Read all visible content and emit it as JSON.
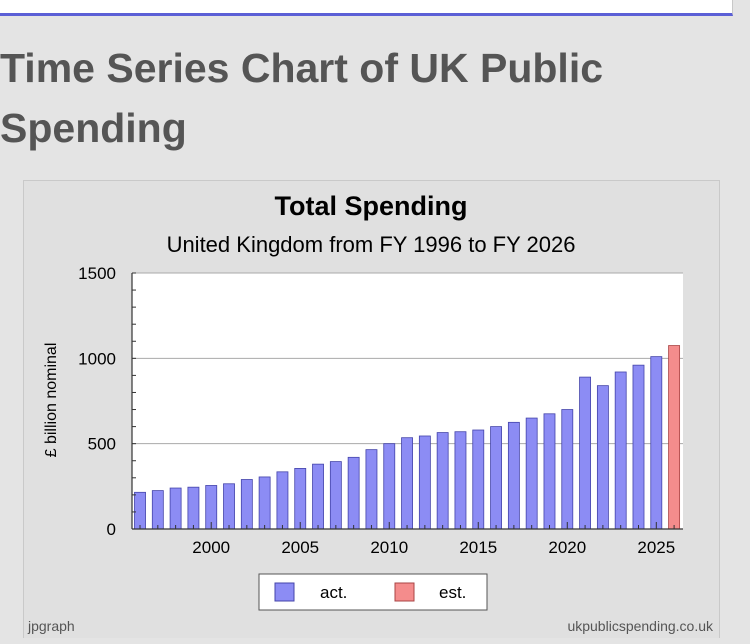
{
  "page": {
    "title": "Time Series Chart of UK Public Spending"
  },
  "chart_data": {
    "type": "bar",
    "title": "Total Spending",
    "subtitle": "United Kingdom from FY 1996 to FY 2026",
    "ylabel": "£ billion nominal",
    "xlabel": "",
    "ylim": [
      0,
      1500
    ],
    "yticks": [
      0,
      500,
      1000,
      1500
    ],
    "xticks": [
      2000,
      2005,
      2010,
      2015,
      2020,
      2025
    ],
    "grid": true,
    "legend_position": "bottom",
    "credit_left": "jpgraph",
    "credit_right": "ukpublicspending.co.uk",
    "colors": {
      "act": "#8c8cf4",
      "est": "#f48c8c"
    },
    "series": [
      {
        "name": "act.",
        "x": [
          1996,
          1997,
          1998,
          1999,
          2000,
          2001,
          2002,
          2003,
          2004,
          2005,
          2006,
          2007,
          2008,
          2009,
          2010,
          2011,
          2012,
          2013,
          2014,
          2015,
          2016,
          2017,
          2018,
          2019,
          2020,
          2021,
          2022,
          2023,
          2024,
          2025
        ],
        "values": [
          215,
          225,
          240,
          245,
          255,
          265,
          290,
          305,
          335,
          355,
          380,
          395,
          420,
          465,
          500,
          535,
          545,
          565,
          570,
          580,
          600,
          625,
          650,
          675,
          700,
          890,
          840,
          920,
          960,
          1010
        ]
      },
      {
        "name": "est.",
        "x": [
          2026
        ],
        "values": [
          1075
        ]
      }
    ]
  }
}
